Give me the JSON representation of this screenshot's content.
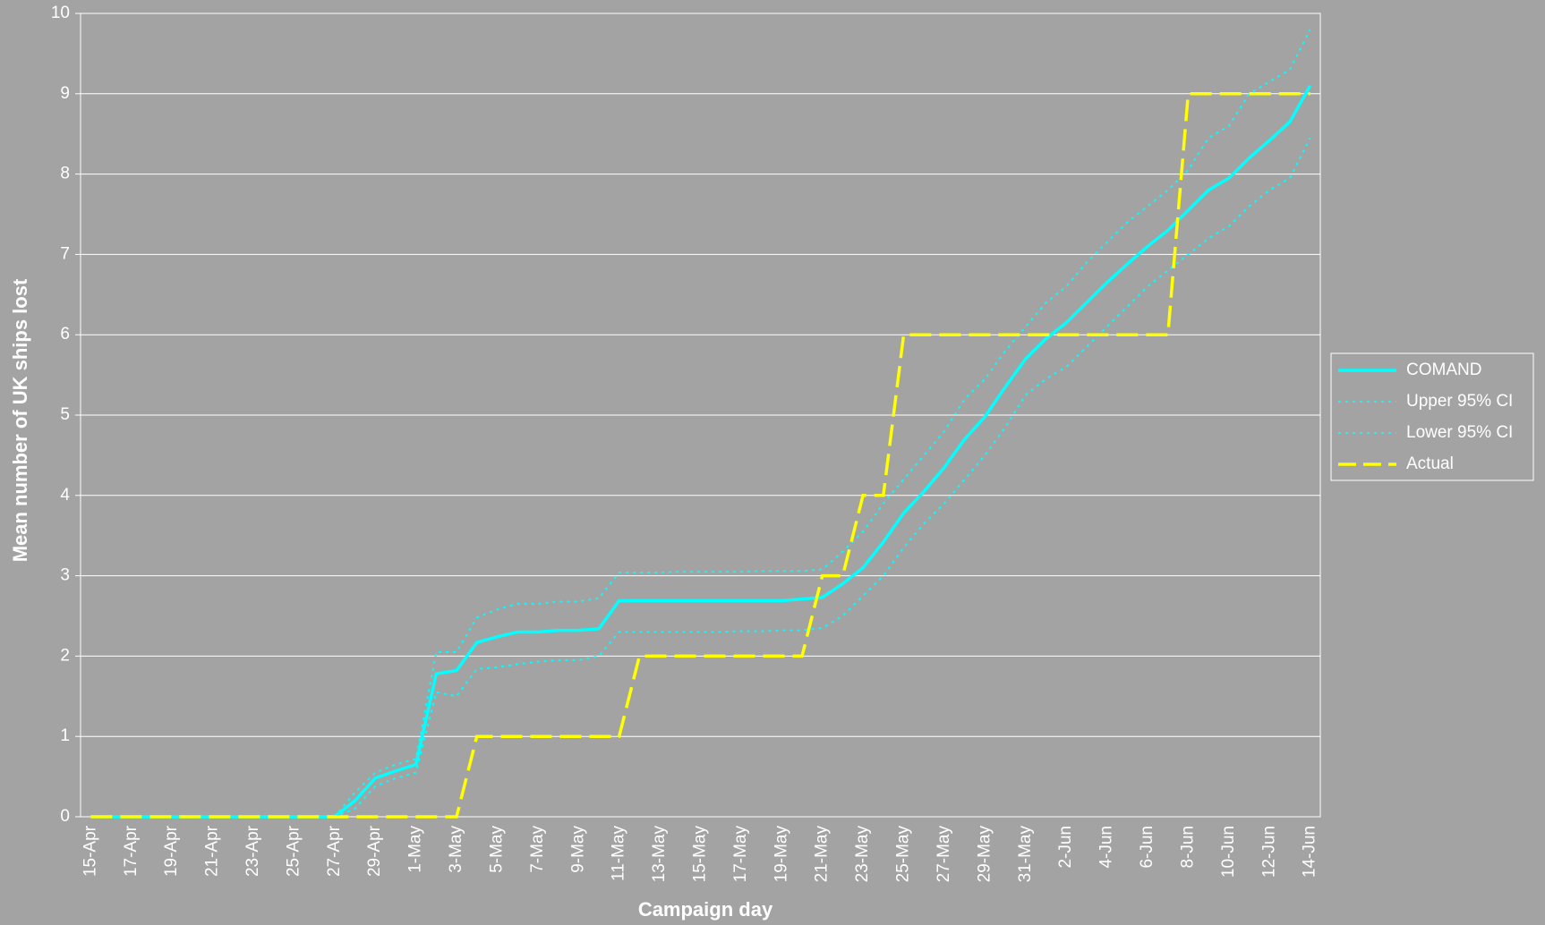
{
  "chart_data": {
    "type": "line",
    "y_label": "Mean number of UK ships lost",
    "x_label": "Campaign day",
    "categories": [
      "15-Apr",
      null,
      "17-Apr",
      null,
      "19-Apr",
      null,
      "21-Apr",
      null,
      "23-Apr",
      null,
      "25-Apr",
      null,
      "27-Apr",
      null,
      "29-Apr",
      null,
      "1-May",
      null,
      "3-May",
      null,
      "5-May",
      null,
      "7-May",
      null,
      "9-May",
      null,
      "11-May",
      null,
      "13-May",
      null,
      "15-May",
      null,
      "17-May",
      null,
      "19-May",
      null,
      "21-May",
      null,
      "23-May",
      null,
      "25-May",
      null,
      "27-May",
      null,
      "29-May",
      null,
      "31-May",
      null,
      "2-Jun",
      null,
      "4-Jun",
      null,
      "6-Jun",
      null,
      "8-Jun",
      null,
      "10-Jun",
      null,
      "12-Jun",
      null,
      "14-Jun"
    ],
    "series": [
      {
        "name": "COMAND",
        "color": "#00ffff",
        "style": "solid",
        "values": [
          0,
          0,
          0,
          0,
          0,
          0,
          0,
          0,
          0,
          0,
          0,
          0,
          0,
          0.2,
          0.48,
          0.57,
          0.65,
          1.78,
          1.82,
          2.17,
          2.24,
          2.3,
          2.3,
          2.32,
          2.32,
          2.34,
          2.69,
          2.69,
          2.69,
          2.69,
          2.69,
          2.69,
          2.69,
          2.69,
          2.69,
          2.71,
          2.73,
          2.9,
          3.1,
          3.42,
          3.78,
          4.05,
          4.35,
          4.7,
          4.98,
          5.35,
          5.7,
          5.95,
          6.15,
          6.4,
          6.65,
          6.88,
          7.1,
          7.3,
          7.55,
          7.8,
          7.95,
          8.2,
          8.42,
          8.65,
          9.1
        ]
      },
      {
        "name": "Upper 95% CI",
        "color": "#00ffff",
        "style": "dotted",
        "values": [
          0,
          0,
          0,
          0,
          0,
          0,
          0,
          0,
          0,
          0,
          0,
          0,
          0,
          0.3,
          0.55,
          0.65,
          0.72,
          2.05,
          2.05,
          2.48,
          2.58,
          2.65,
          2.65,
          2.68,
          2.68,
          2.72,
          3.04,
          3.04,
          3.04,
          3.05,
          3.05,
          3.05,
          3.05,
          3.06,
          3.06,
          3.06,
          3.08,
          3.3,
          3.55,
          3.9,
          4.2,
          4.5,
          4.8,
          5.2,
          5.45,
          5.8,
          6.1,
          6.4,
          6.6,
          6.9,
          7.15,
          7.4,
          7.6,
          7.8,
          8.05,
          8.45,
          8.6,
          9.0,
          9.15,
          9.3,
          9.8
        ]
      },
      {
        "name": "Lower 95% CI",
        "color": "#00ffff",
        "style": "dotted",
        "values": [
          0,
          0,
          0,
          0,
          0,
          0,
          0,
          0,
          0,
          0,
          0,
          0,
          0,
          0.1,
          0.38,
          0.48,
          0.55,
          1.55,
          1.5,
          1.84,
          1.86,
          1.9,
          1.93,
          1.95,
          1.95,
          2.0,
          2.3,
          2.3,
          2.3,
          2.3,
          2.3,
          2.3,
          2.31,
          2.31,
          2.32,
          2.32,
          2.35,
          2.5,
          2.75,
          3.0,
          3.35,
          3.65,
          3.9,
          4.2,
          4.5,
          4.85,
          5.25,
          5.45,
          5.6,
          5.85,
          6.1,
          6.35,
          6.6,
          6.8,
          7.0,
          7.2,
          7.35,
          7.6,
          7.8,
          7.95,
          8.45
        ]
      },
      {
        "name": "Actual",
        "color": "#ffff00",
        "style": "dashed",
        "values": [
          0,
          0,
          0,
          0,
          0,
          0,
          0,
          0,
          0,
          0,
          0,
          0,
          0,
          0,
          0,
          0,
          0,
          0,
          0,
          1,
          1,
          1,
          1,
          1,
          1,
          1,
          1,
          2,
          2,
          2,
          2,
          2,
          2,
          2,
          2,
          2,
          3,
          3,
          4,
          4,
          6,
          6,
          6,
          6,
          6,
          6,
          6,
          6,
          6,
          6,
          6,
          6,
          6,
          6,
          9,
          9,
          9,
          9,
          9,
          9,
          9
        ]
      }
    ],
    "ylim": [
      0,
      10
    ],
    "yticks": [
      0,
      1,
      2,
      3,
      4,
      5,
      6,
      7,
      8,
      9,
      10
    ],
    "grid": true,
    "legend": "right"
  }
}
